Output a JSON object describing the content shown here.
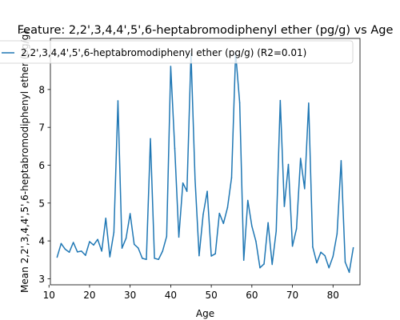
{
  "chart_data": {
    "type": "line",
    "title": "Feature: 2,2',3,4,4',5',6-heptabromodiphenyl ether (pg/g) vs Age",
    "xlabel": "Age",
    "ylabel": "Mean 2,2',3,4,4',5',6-heptabromodiphenyl ether (pg/g)",
    "xlim": [
      10.35,
      86.65
    ],
    "ylim": [
      2.84,
      9.35
    ],
    "xticks": [
      10,
      20,
      30,
      40,
      50,
      60,
      70,
      80
    ],
    "yticks": [
      3,
      4,
      5,
      6,
      7,
      8
    ],
    "grid": false,
    "legend_position": "top",
    "color": "#1f77b4",
    "series": [
      {
        "name": "2,2',3,4,4',5',6-heptabromodiphenyl ether (pg/g) (R2=0.01)",
        "x": [
          12,
          13,
          14,
          15,
          16,
          17,
          18,
          19,
          20,
          21,
          22,
          23,
          24,
          25,
          26,
          27,
          28,
          29,
          30,
          31,
          32,
          33,
          34,
          35,
          36,
          37,
          38,
          39,
          40,
          41,
          42,
          43,
          44,
          45,
          46,
          47,
          48,
          49,
          50,
          51,
          52,
          53,
          54,
          55,
          56,
          57,
          58,
          59,
          60,
          61,
          62,
          63,
          64,
          65,
          66,
          67,
          68,
          69,
          70,
          71,
          72,
          73,
          74,
          75,
          76,
          77,
          78,
          79,
          80,
          81,
          82,
          83,
          84,
          85
        ],
        "y": [
          3.57,
          3.93,
          3.78,
          3.7,
          3.96,
          3.71,
          3.73,
          3.62,
          3.98,
          3.89,
          4.04,
          3.73,
          4.6,
          3.58,
          4.23,
          7.7,
          3.81,
          4.07,
          4.72,
          3.91,
          3.81,
          3.54,
          3.51,
          6.7,
          3.54,
          3.51,
          3.73,
          4.12,
          8.61,
          6.44,
          4.1,
          5.53,
          5.31,
          8.95,
          5.63,
          3.61,
          4.7,
          5.31,
          3.6,
          3.66,
          4.73,
          4.46,
          4.88,
          5.67,
          8.97,
          7.65,
          3.49,
          5.07,
          4.39,
          3.99,
          3.29,
          3.39,
          4.48,
          3.38,
          4.26,
          7.71,
          4.91,
          6.02,
          3.86,
          4.32,
          6.18,
          5.38,
          7.64,
          3.84,
          3.42,
          3.7,
          3.61,
          3.29,
          3.59,
          4.19,
          6.12,
          3.44,
          3.17,
          3.82
        ]
      }
    ]
  }
}
